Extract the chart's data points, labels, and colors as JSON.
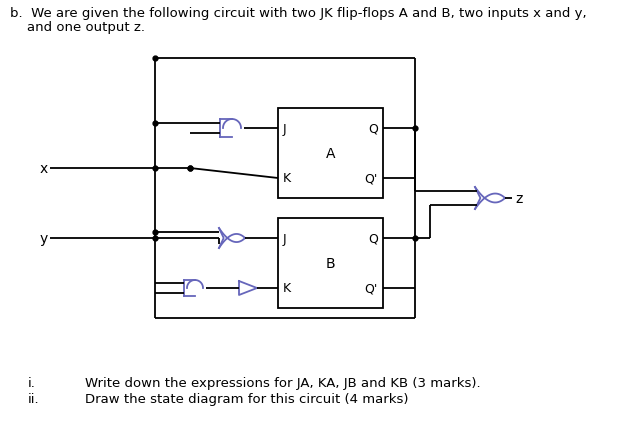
{
  "bg_color": "#ffffff",
  "line_color": "#000000",
  "gate_color": "#6666bb",
  "text_color": "#000000",
  "font_size": 9.5,
  "figsize": [
    6.4,
    4.39
  ],
  "dpi": 100,
  "title_line1": "b.  We are given the following circuit with two JK flip-flops A and B, two inputs x and y,",
  "title_line2": "    and one output z.",
  "label_i": "i.",
  "label_ii": "ii.",
  "text_i": "Write down the expressions for JA, KA, JB and KB (3 marks).",
  "text_ii": "Draw the state diagram for this circuit (4 marks)"
}
